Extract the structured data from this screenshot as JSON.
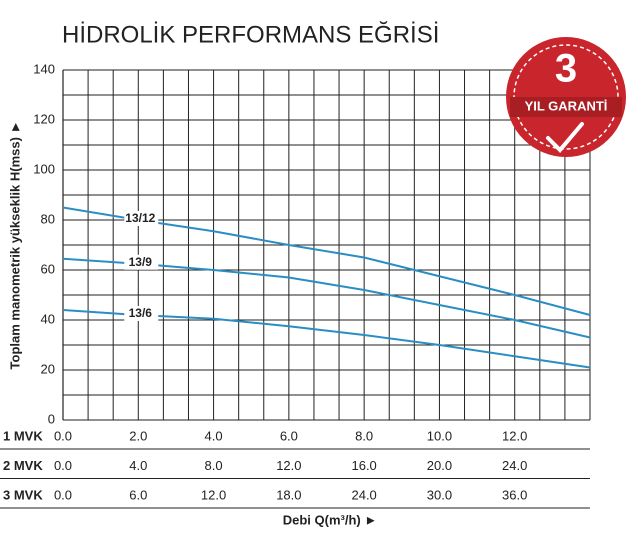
{
  "chart_data": {
    "type": "line",
    "title": "HİDROLİK PERFORMANS EĞRİSİ",
    "y_label": "Toplam manometrik yükseklik H(mss) ►",
    "x_label": "Debi Q(m³/h) ►",
    "x": [
      0,
      2,
      4,
      6,
      8,
      10,
      12,
      14
    ],
    "xlim": [
      0,
      14
    ],
    "ylim": [
      0,
      140
    ],
    "yticks": [
      0,
      20,
      40,
      60,
      80,
      100,
      120,
      140
    ],
    "grid": true,
    "grid_subdivisions_x": 3,
    "grid_subdivisions_y": 2,
    "series": [
      {
        "name": "13/12",
        "color": "#2a8ec4",
        "values": [
          85,
          80,
          75.5,
          70,
          65,
          57.5,
          50,
          42
        ]
      },
      {
        "name": "13/9",
        "color": "#2a8ec4",
        "values": [
          64.5,
          62.5,
          60,
          57,
          52,
          46,
          40,
          33
        ]
      },
      {
        "name": "13/6",
        "color": "#2a8ec4",
        "values": [
          44,
          42,
          40.5,
          37.5,
          34,
          30,
          25.5,
          21
        ]
      }
    ],
    "x_axes": [
      {
        "name": "1 MVK",
        "xlim": [
          0,
          14
        ],
        "ticks": [
          {
            "value": 0,
            "label": "0.0"
          },
          {
            "value": 2,
            "label": "2.0"
          },
          {
            "value": 4,
            "label": "4.0"
          },
          {
            "value": 6,
            "label": "6.0"
          },
          {
            "value": 8,
            "label": "8.0"
          },
          {
            "value": 10,
            "label": "10.0"
          },
          {
            "value": 12,
            "label": "12.0"
          }
        ]
      },
      {
        "name": "2 MVK",
        "xlim": [
          0,
          28
        ],
        "ticks": [
          {
            "value": 0,
            "label": "0.0"
          },
          {
            "value": 4,
            "label": "4.0"
          },
          {
            "value": 8,
            "label": "8.0"
          },
          {
            "value": 12,
            "label": "12.0"
          },
          {
            "value": 16,
            "label": "16.0"
          },
          {
            "value": 20,
            "label": "20.0"
          },
          {
            "value": 24,
            "label": "24.0"
          }
        ]
      },
      {
        "name": "3 MVK",
        "xlim": [
          0,
          42
        ],
        "ticks": [
          {
            "value": 0,
            "label": "0.0"
          },
          {
            "value": 6,
            "label": "6.0"
          },
          {
            "value": 12,
            "label": "12.0"
          },
          {
            "value": 18,
            "label": "18.0"
          },
          {
            "value": 24,
            "label": "24.0"
          },
          {
            "value": 30,
            "label": "30.0"
          },
          {
            "value": 36,
            "label": "36.0"
          }
        ]
      }
    ],
    "badge": {
      "number": "3",
      "text": "YIL GARANTİ"
    }
  }
}
